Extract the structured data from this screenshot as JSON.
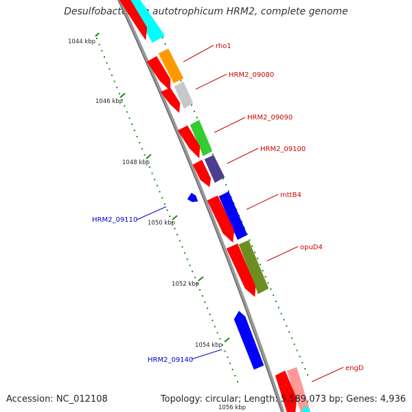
{
  "title": "Desulfobacterium autotrophicum HRM2, complete genome",
  "footer": {
    "accession": "Accession: NC_012108",
    "summary": "Topology: circular; Length: 5,589,073 bp; Genes: 4,936"
  },
  "colors": {
    "backbone": "#8c8c8c",
    "tick": "#118811",
    "forward_label": "#cc0000",
    "reverse_label": "#0000cc",
    "cds_strand": "#ff0000"
  },
  "scale_ticks": [
    {
      "label": "1044 kbp"
    },
    {
      "label": "1046 kbp"
    },
    {
      "label": "1048 kbp"
    },
    {
      "label": "1050 kbp"
    },
    {
      "label": "1052 kbp"
    },
    {
      "label": "1054 kbp"
    },
    {
      "label": "1056 kbp"
    }
  ],
  "gene_labels": [
    {
      "text": "rho1",
      "strand": "forward"
    },
    {
      "text": "HRM2_09080",
      "strand": "forward"
    },
    {
      "text": "HRM2_09090",
      "strand": "forward"
    },
    {
      "text": "HRM2_09100",
      "strand": "forward"
    },
    {
      "text": "mttB4",
      "strand": "forward"
    },
    {
      "text": "opuD4",
      "strand": "forward"
    },
    {
      "text": "engD",
      "strand": "forward"
    },
    {
      "text": "HRM2_09110",
      "strand": "reverse"
    },
    {
      "text": "HRM2_09140",
      "strand": "reverse"
    }
  ],
  "features": [
    {
      "track": "cds",
      "color": "#ff0000"
    },
    {
      "track": "cds",
      "color": "#ff0000"
    },
    {
      "track": "cds",
      "color": "#ff0000"
    },
    {
      "track": "cds",
      "color": "#ff0000"
    },
    {
      "track": "cds",
      "color": "#ff0000"
    },
    {
      "track": "cds",
      "color": "#ff0000"
    },
    {
      "track": "cds",
      "color": "#ff0000"
    },
    {
      "track": "cds",
      "color": "#ff0000"
    },
    {
      "track": "cds",
      "color": "#ff0000"
    },
    {
      "track": "gene",
      "color": "#00ffff"
    },
    {
      "track": "gene",
      "color": "#ff9900"
    },
    {
      "track": "gene",
      "color": "#c8c8c8"
    },
    {
      "track": "gene",
      "color": "#33cc33"
    },
    {
      "track": "gene",
      "color": "#4b3f8f"
    },
    {
      "track": "gene",
      "color": "#0000ff"
    },
    {
      "track": "gene",
      "color": "#6b8e23"
    },
    {
      "track": "gene",
      "color": "#ff9999"
    },
    {
      "track": "gene",
      "color": "#00ffff"
    },
    {
      "track": "reverse",
      "color": "#0000ff"
    },
    {
      "track": "reverse",
      "color": "#0000ff"
    }
  ]
}
